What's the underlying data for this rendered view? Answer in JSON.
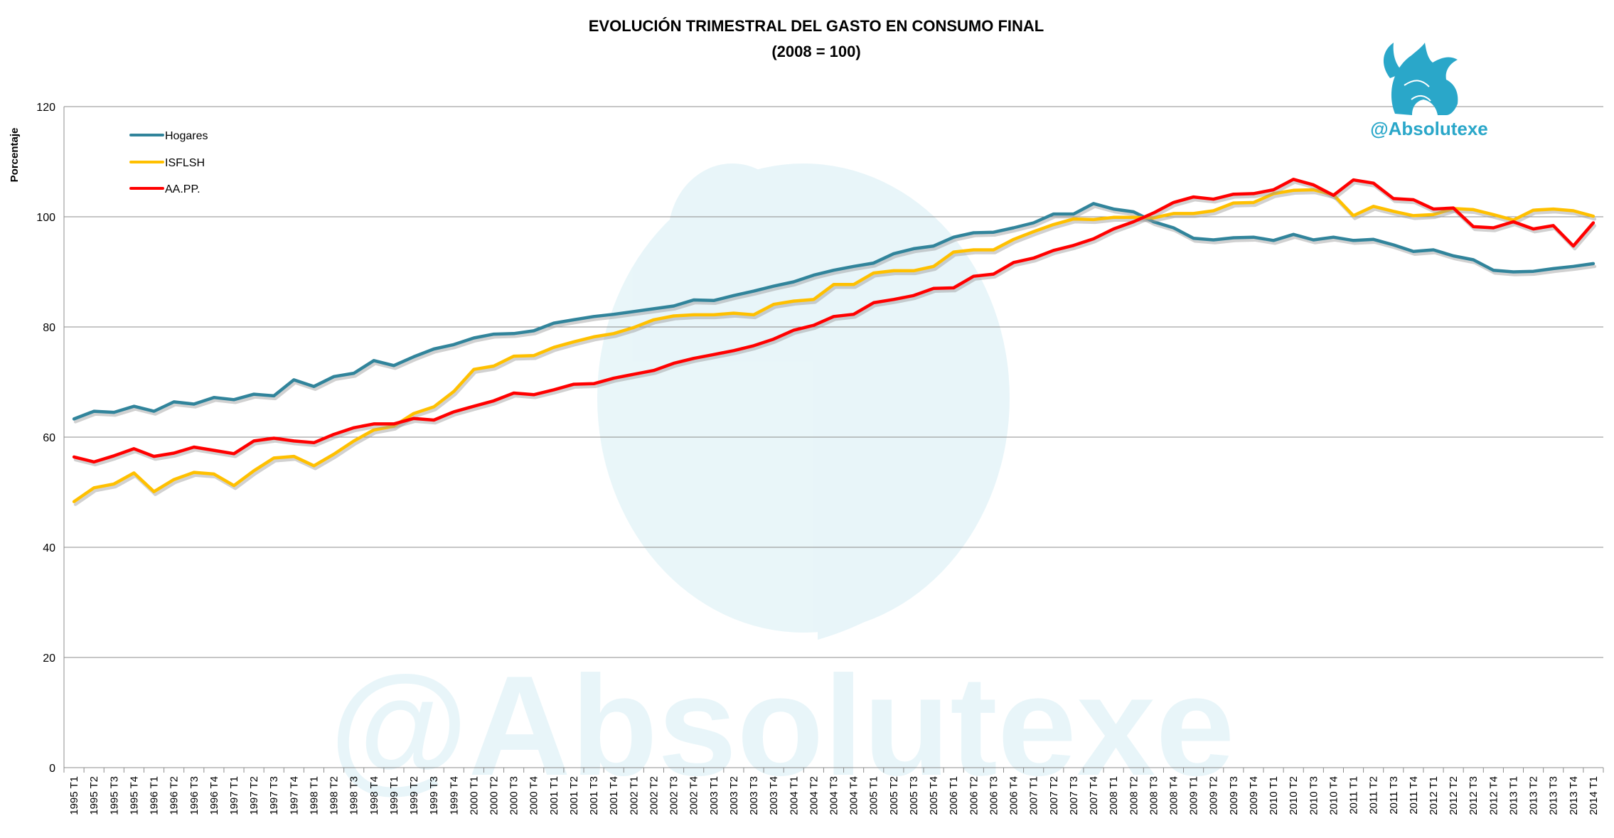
{
  "brand": {
    "handle": "@Absolutexe",
    "color": "#2aa7c9"
  },
  "watermark": {
    "text": "@Absolutexe"
  },
  "chart_data": {
    "type": "line",
    "title": "EVOLUCIÓN TRIMESTRAL DEL GASTO EN CONSUMO FINAL",
    "subtitle": "(2008 = 100)",
    "xlabel": "",
    "ylabel": "Porcentaje",
    "ylim": [
      0,
      120
    ],
    "yticks": [
      0,
      20,
      40,
      60,
      80,
      100,
      120
    ],
    "grid": "horizontal",
    "legend_position": "top-left",
    "categories": [
      "1995 T1",
      "1995 T2",
      "1995 T3",
      "1995 T4",
      "1996 T1",
      "1996 T2",
      "1996 T3",
      "1996 T4",
      "1997 T1",
      "1997 T2",
      "1997 T3",
      "1997 T4",
      "1998 T1",
      "1998 T2",
      "1998 T3",
      "1998 T4",
      "1999 T1",
      "1999 T2",
      "1999 T3",
      "1999 T4",
      "2000 T1",
      "2000 T2",
      "2000 T3",
      "2000 T4",
      "2001 T1",
      "2001 T2",
      "2001 T3",
      "2001 T4",
      "2002 T1",
      "2002 T2",
      "2002 T3",
      "2002 T4",
      "2003 T1",
      "2003 T2",
      "2003 T3",
      "2003 T4",
      "2004 T1",
      "2004 T2",
      "2004 T3",
      "2004 T4",
      "2005 T1",
      "2005 T2",
      "2005 T3",
      "2005 T4",
      "2006 T1",
      "2006 T2",
      "2006 T3",
      "2006 T4",
      "2007 T1",
      "2007 T2",
      "2007 T3",
      "2007 T4",
      "2008 T1",
      "2008 T2",
      "2008 T3",
      "2008 T4",
      "2009 T1",
      "2009 T2",
      "2009 T3",
      "2009 T4",
      "2010 T1",
      "2010 T2",
      "2010 T3",
      "2010 T4",
      "2011 T1",
      "2011 T2",
      "2011 T3",
      "2011 T4",
      "2012 T1",
      "2012 T2",
      "2012 T3",
      "2012 T4",
      "2013 T1",
      "2013 T2",
      "2013 T3",
      "2013 T4",
      "2014 T1"
    ],
    "series": [
      {
        "name": "Hogares",
        "color": "#31849b",
        "values": [
          63.3,
          64.7,
          64.5,
          65.6,
          64.7,
          66.4,
          66.0,
          67.2,
          66.8,
          67.8,
          67.5,
          70.4,
          69.2,
          71.0,
          71.6,
          73.9,
          73.0,
          74.6,
          76.0,
          76.8,
          78.0,
          78.7,
          78.8,
          79.3,
          80.7,
          81.3,
          81.9,
          82.3,
          82.8,
          83.3,
          83.8,
          84.9,
          84.8,
          85.7,
          86.5,
          87.4,
          88.2,
          89.4,
          90.3,
          91.0,
          91.6,
          93.3,
          94.2,
          94.7,
          96.3,
          97.1,
          97.2,
          98.0,
          98.9,
          100.5,
          100.5,
          102.4,
          101.4,
          100.9,
          99.1,
          98.0,
          96.1,
          95.8,
          96.2,
          96.3,
          95.7,
          96.8,
          95.8,
          96.3,
          95.7,
          95.9,
          94.9,
          93.7,
          94.0,
          92.9,
          92.2,
          90.3,
          90.0,
          90.1,
          90.6,
          91.0,
          91.5
        ]
      },
      {
        "name": "ISFLSH",
        "color": "#ffc000",
        "values": [
          48.3,
          50.8,
          51.5,
          53.5,
          50.1,
          52.3,
          53.6,
          53.3,
          51.2,
          53.9,
          56.2,
          56.5,
          54.8,
          56.9,
          59.3,
          61.3,
          62.0,
          64.3,
          65.5,
          68.3,
          72.3,
          72.9,
          74.7,
          74.8,
          76.3,
          77.3,
          78.2,
          78.8,
          79.9,
          81.3,
          82.0,
          82.2,
          82.2,
          82.5,
          82.2,
          84.1,
          84.7,
          85.0,
          87.7,
          87.7,
          89.8,
          90.2,
          90.2,
          91.0,
          93.6,
          94.0,
          94.0,
          95.9,
          97.3,
          98.6,
          99.6,
          99.5,
          99.9,
          99.9,
          99.8,
          100.6,
          100.6,
          101.1,
          102.5,
          102.6,
          104.2,
          104.8,
          104.9,
          104.0,
          100.2,
          101.9,
          101.0,
          100.2,
          100.4,
          101.5,
          101.3,
          100.4,
          99.4,
          101.2,
          101.4,
          101.1,
          100.1
        ]
      },
      {
        "name": "AA.PP.",
        "color": "#ff0000",
        "values": [
          56.4,
          55.5,
          56.6,
          57.9,
          56.5,
          57.1,
          58.2,
          57.6,
          57.0,
          59.3,
          59.8,
          59.3,
          59.0,
          60.5,
          61.7,
          62.4,
          62.4,
          63.4,
          63.1,
          64.6,
          65.6,
          66.6,
          68.0,
          67.7,
          68.6,
          69.6,
          69.7,
          70.7,
          71.4,
          72.1,
          73.4,
          74.3,
          75.0,
          75.7,
          76.6,
          77.8,
          79.4,
          80.3,
          81.9,
          82.3,
          84.4,
          85.0,
          85.7,
          87.0,
          87.1,
          89.2,
          89.6,
          91.7,
          92.5,
          93.9,
          94.8,
          96.0,
          97.8,
          99.1,
          100.7,
          102.6,
          103.6,
          103.2,
          104.1,
          104.2,
          104.9,
          106.8,
          105.8,
          103.9,
          106.7,
          106.1,
          103.3,
          103.1,
          101.4,
          101.6,
          98.2,
          98.0,
          99.1,
          97.8,
          98.4,
          94.7,
          98.9
        ]
      }
    ]
  }
}
